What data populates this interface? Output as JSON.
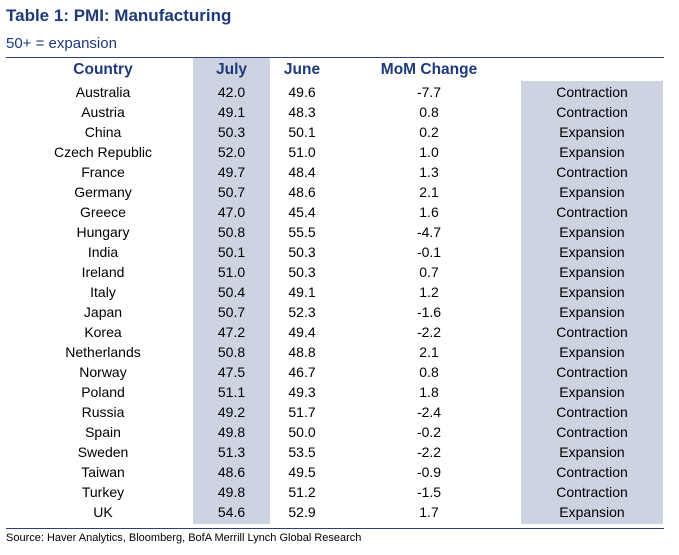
{
  "title": "Table 1: PMI: Manufacturing",
  "subtitle": "50+ = expansion",
  "source": "Source: Haver Analytics, Bloomberg, BofA Merrill Lynch Global Research",
  "colors": {
    "header_text": "#1f3a7a",
    "shade": "#cdd3e1",
    "rule": "#2b3f7f"
  },
  "chart_data": {
    "type": "table",
    "columns": [
      "Country",
      "July",
      "June",
      "MoM Change",
      ""
    ],
    "rows": [
      [
        "Australia",
        "42.0",
        "49.6",
        "-7.7",
        "Contraction"
      ],
      [
        "Austria",
        "49.1",
        "48.3",
        "0.8",
        "Contraction"
      ],
      [
        "China",
        "50.3",
        "50.1",
        "0.2",
        "Expansion"
      ],
      [
        "Czech Republic",
        "52.0",
        "51.0",
        "1.0",
        "Expansion"
      ],
      [
        "France",
        "49.7",
        "48.4",
        "1.3",
        "Contraction"
      ],
      [
        "Germany",
        "50.7",
        "48.6",
        "2.1",
        "Expansion"
      ],
      [
        "Greece",
        "47.0",
        "45.4",
        "1.6",
        "Contraction"
      ],
      [
        "Hungary",
        "50.8",
        "55.5",
        "-4.7",
        "Expansion"
      ],
      [
        "India",
        "50.1",
        "50.3",
        "-0.1",
        "Expansion"
      ],
      [
        "Ireland",
        "51.0",
        "50.3",
        "0.7",
        "Expansion"
      ],
      [
        "Italy",
        "50.4",
        "49.1",
        "1.2",
        "Expansion"
      ],
      [
        "Japan",
        "50.7",
        "52.3",
        "-1.6",
        "Expansion"
      ],
      [
        "Korea",
        "47.2",
        "49.4",
        "-2.2",
        "Contraction"
      ],
      [
        "Netherlands",
        "50.8",
        "48.8",
        "2.1",
        "Expansion"
      ],
      [
        "Norway",
        "47.5",
        "46.7",
        "0.8",
        "Contraction"
      ],
      [
        "Poland",
        "51.1",
        "49.3",
        "1.8",
        "Expansion"
      ],
      [
        "Russia",
        "49.2",
        "51.7",
        "-2.4",
        "Contraction"
      ],
      [
        "Spain",
        "49.8",
        "50.0",
        "-0.2",
        "Contraction"
      ],
      [
        "Sweden",
        "51.3",
        "53.5",
        "-2.2",
        "Expansion"
      ],
      [
        "Taiwan",
        "48.6",
        "49.5",
        "-0.9",
        "Contraction"
      ],
      [
        "Turkey",
        "49.8",
        "51.2",
        "-1.5",
        "Contraction"
      ],
      [
        "UK",
        "54.6",
        "52.9",
        "1.7",
        "Expansion"
      ]
    ]
  }
}
